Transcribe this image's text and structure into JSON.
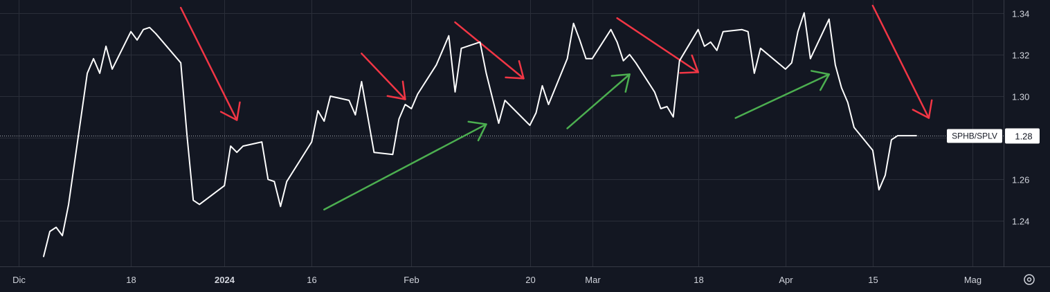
{
  "chart_data": {
    "type": "line",
    "symbol": "SPHB/SPLV",
    "last_value": "1.28",
    "last_value_number": 1.281,
    "grid": true,
    "colors": {
      "background": "#131722",
      "grid": "#2a2e39",
      "line": "#ffffff",
      "down_arrow": "#f23645",
      "up_arrow": "#4caf50",
      "text": "#d1d4dc"
    },
    "yticks": [
      {
        "value": 1.24,
        "label": "1.24"
      },
      {
        "value": 1.26,
        "label": "1.26"
      },
      {
        "value": 1.28,
        "label": "1.28"
      },
      {
        "value": 1.3,
        "label": "1.30"
      },
      {
        "value": 1.32,
        "label": "1.32"
      },
      {
        "value": 1.34,
        "label": "1.34"
      }
    ],
    "ylim": [
      1.2182,
      1.3462
    ],
    "xlim": [
      "2023-11-27",
      "2024-05-06"
    ],
    "xticks": [
      {
        "date": "2023-11-30",
        "label": "Dic",
        "bold": false
      },
      {
        "date": "2023-12-18",
        "label": "18",
        "bold": false
      },
      {
        "date": "2024-01-02",
        "label": "2024",
        "bold": true
      },
      {
        "date": "2024-01-16",
        "label": "16",
        "bold": false
      },
      {
        "date": "2024-02-01",
        "label": "Feb",
        "bold": false
      },
      {
        "date": "2024-02-20",
        "label": "20",
        "bold": false
      },
      {
        "date": "2024-03-01",
        "label": "Mar",
        "bold": false
      },
      {
        "date": "2024-03-18",
        "label": "18",
        "bold": false
      },
      {
        "date": "2024-04-01",
        "label": "Apr",
        "bold": false
      },
      {
        "date": "2024-04-15",
        "label": "15",
        "bold": false
      },
      {
        "date": "2024-05-01",
        "label": "Mag",
        "bold": false
      }
    ],
    "series": [
      {
        "points": [
          [
            "2023-12-04",
            1.223
          ],
          [
            "2023-12-05",
            1.235
          ],
          [
            "2023-12-06",
            1.237
          ],
          [
            "2023-12-07",
            1.233
          ],
          [
            "2023-12-08",
            1.248
          ],
          [
            "2023-12-11",
            1.311
          ],
          [
            "2023-12-12",
            1.318
          ],
          [
            "2023-12-13",
            1.311
          ],
          [
            "2023-12-14",
            1.324
          ],
          [
            "2023-12-15",
            1.313
          ],
          [
            "2023-12-18",
            1.331
          ],
          [
            "2023-12-19",
            1.327
          ],
          [
            "2023-12-20",
            1.332
          ],
          [
            "2023-12-21",
            1.333
          ],
          [
            "2023-12-22",
            1.33
          ],
          [
            "2023-12-26",
            1.316
          ],
          [
            "2023-12-27",
            1.281
          ],
          [
            "2023-12-28",
            1.25
          ],
          [
            "2023-12-29",
            1.248
          ],
          [
            "2024-01-02",
            1.257
          ],
          [
            "2024-01-03",
            1.276
          ],
          [
            "2024-01-04",
            1.273
          ],
          [
            "2024-01-05",
            1.276
          ],
          [
            "2024-01-08",
            1.278
          ],
          [
            "2024-01-09",
            1.26
          ],
          [
            "2024-01-10",
            1.259
          ],
          [
            "2024-01-11",
            1.247
          ],
          [
            "2024-01-12",
            1.259
          ],
          [
            "2024-01-16",
            1.278
          ],
          [
            "2024-01-17",
            1.293
          ],
          [
            "2024-01-18",
            1.288
          ],
          [
            "2024-01-19",
            1.3
          ],
          [
            "2024-01-22",
            1.298
          ],
          [
            "2024-01-23",
            1.291
          ],
          [
            "2024-01-24",
            1.307
          ],
          [
            "2024-01-25",
            1.29
          ],
          [
            "2024-01-26",
            1.273
          ],
          [
            "2024-01-29",
            1.272
          ],
          [
            "2024-01-30",
            1.289
          ],
          [
            "2024-01-31",
            1.296
          ],
          [
            "2024-02-01",
            1.294
          ],
          [
            "2024-02-02",
            1.301
          ],
          [
            "2024-02-05",
            1.315
          ],
          [
            "2024-02-06",
            1.322
          ],
          [
            "2024-02-07",
            1.329
          ],
          [
            "2024-02-08",
            1.302
          ],
          [
            "2024-02-09",
            1.323
          ],
          [
            "2024-02-12",
            1.326
          ],
          [
            "2024-02-13",
            1.311
          ],
          [
            "2024-02-14",
            1.299
          ],
          [
            "2024-02-15",
            1.287
          ],
          [
            "2024-02-16",
            1.298
          ],
          [
            "2024-02-20",
            1.286
          ],
          [
            "2024-02-21",
            1.292
          ],
          [
            "2024-02-22",
            1.305
          ],
          [
            "2024-02-23",
            1.296
          ],
          [
            "2024-02-26",
            1.318
          ],
          [
            "2024-02-27",
            1.335
          ],
          [
            "2024-02-28",
            1.327
          ],
          [
            "2024-02-29",
            1.318
          ],
          [
            "2024-03-01",
            1.318
          ],
          [
            "2024-03-04",
            1.332
          ],
          [
            "2024-03-05",
            1.326
          ],
          [
            "2024-03-06",
            1.317
          ],
          [
            "2024-03-07",
            1.32
          ],
          [
            "2024-03-08",
            1.316
          ],
          [
            "2024-03-11",
            1.302
          ],
          [
            "2024-03-12",
            1.294
          ],
          [
            "2024-03-13",
            1.295
          ],
          [
            "2024-03-14",
            1.29
          ],
          [
            "2024-03-15",
            1.317
          ],
          [
            "2024-03-18",
            1.332
          ],
          [
            "2024-03-19",
            1.324
          ],
          [
            "2024-03-20",
            1.326
          ],
          [
            "2024-03-21",
            1.322
          ],
          [
            "2024-03-22",
            1.331
          ],
          [
            "2024-03-25",
            1.332
          ],
          [
            "2024-03-26",
            1.331
          ],
          [
            "2024-03-27",
            1.311
          ],
          [
            "2024-03-28",
            1.323
          ],
          [
            "2024-04-01",
            1.313
          ],
          [
            "2024-04-02",
            1.316
          ],
          [
            "2024-04-03",
            1.331
          ],
          [
            "2024-04-04",
            1.34
          ],
          [
            "2024-04-05",
            1.318
          ],
          [
            "2024-04-08",
            1.337
          ],
          [
            "2024-04-09",
            1.315
          ],
          [
            "2024-04-10",
            1.304
          ],
          [
            "2024-04-11",
            1.297
          ],
          [
            "2024-04-12",
            1.285
          ],
          [
            "2024-04-15",
            1.274
          ],
          [
            "2024-04-16",
            1.255
          ],
          [
            "2024-04-17",
            1.262
          ],
          [
            "2024-04-18",
            1.279
          ],
          [
            "2024-04-19",
            1.281
          ],
          [
            "2024-04-22",
            1.281
          ]
        ]
      }
    ],
    "annotations": [
      {
        "kind": "arrow",
        "color": "down",
        "from": [
          "2023-12-26",
          1.3425
        ],
        "to": [
          "2024-01-04",
          1.2885
        ]
      },
      {
        "kind": "arrow",
        "color": "down",
        "from": [
          "2024-01-24",
          1.3205
        ],
        "to": [
          "2024-01-31",
          1.2985
        ]
      },
      {
        "kind": "arrow",
        "color": "down",
        "from": [
          "2024-02-08",
          1.3355
        ],
        "to": [
          "2024-02-19",
          1.3085
        ]
      },
      {
        "kind": "arrow",
        "color": "down",
        "from": [
          "2024-03-05",
          1.3375
        ],
        "to": [
          "2024-03-18",
          1.3115
        ]
      },
      {
        "kind": "arrow",
        "color": "down",
        "from": [
          "2024-04-15",
          1.3435
        ],
        "to": [
          "2024-04-24",
          1.2895
        ]
      },
      {
        "kind": "arrow",
        "color": "up",
        "from": [
          "2024-01-18",
          1.2455
        ],
        "to": [
          "2024-02-13",
          1.2865
        ]
      },
      {
        "kind": "arrow",
        "color": "up",
        "from": [
          "2024-02-26",
          1.2845
        ],
        "to": [
          "2024-03-07",
          1.3105
        ]
      },
      {
        "kind": "arrow",
        "color": "up",
        "from": [
          "2024-03-24",
          1.2895
        ],
        "to": [
          "2024-04-08",
          1.3105
        ]
      }
    ]
  }
}
